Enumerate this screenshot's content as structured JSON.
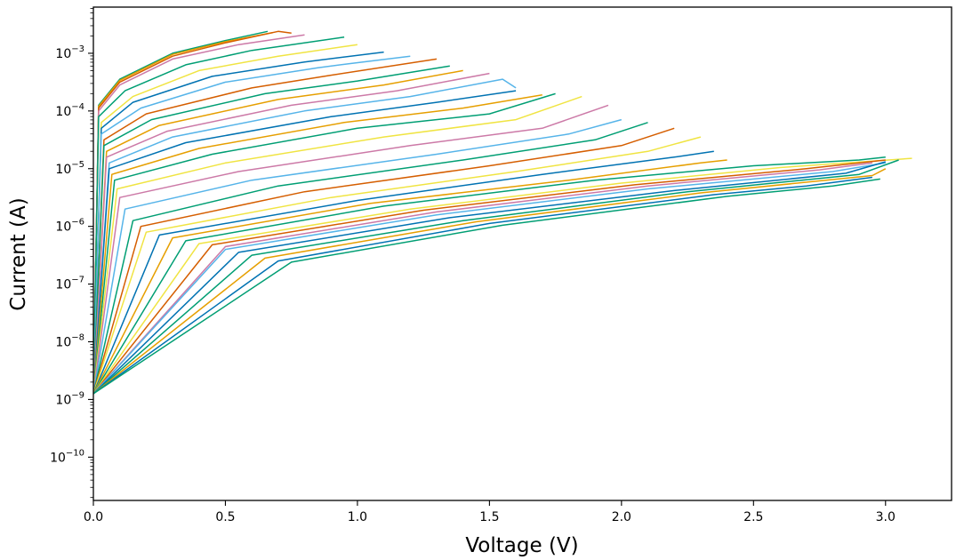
{
  "chart_data": {
    "type": "line",
    "xlabel": "Voltage (V)",
    "ylabel": "Current (A)",
    "xlim": [
      0.0,
      3.25
    ],
    "ylim_exp": [
      -10.75,
      -2.2
    ],
    "yscale": "log",
    "grid": false,
    "legend": "none",
    "x_ticks": [
      {
        "value": 0.0,
        "label": "0.0"
      },
      {
        "value": 0.5,
        "label": "0.5"
      },
      {
        "value": 1.0,
        "label": "1.0"
      },
      {
        "value": 1.5,
        "label": "1.5"
      },
      {
        "value": 2.0,
        "label": "2.0"
      },
      {
        "value": 2.5,
        "label": "2.5"
      },
      {
        "value": 3.0,
        "label": "3.0"
      }
    ],
    "y_ticks": [
      {
        "exp": -10,
        "base": "10",
        "sup": "−10"
      },
      {
        "exp": -9,
        "base": "10",
        "sup": "−9"
      },
      {
        "exp": -8,
        "base": "10",
        "sup": "−8"
      },
      {
        "exp": -7,
        "base": "10",
        "sup": "−7"
      },
      {
        "exp": -6,
        "base": "10",
        "sup": "−6"
      },
      {
        "exp": -5,
        "base": "10",
        "sup": "−5"
      },
      {
        "exp": -4,
        "base": "10",
        "sup": "−4"
      },
      {
        "exp": -3,
        "base": "10",
        "sup": "−3"
      }
    ],
    "series": [
      {
        "color": "#009E73",
        "points": [
          [
            0.0,
            -8.8
          ],
          [
            0.02,
            -3.9
          ],
          [
            0.1,
            -3.45
          ],
          [
            0.3,
            -3.0
          ],
          [
            0.5,
            -2.78
          ],
          [
            0.66,
            -2.62
          ]
        ]
      },
      {
        "color": "#E69F00",
        "points": [
          [
            0.0,
            -8.9
          ],
          [
            0.02,
            -3.92
          ],
          [
            0.1,
            -3.47
          ],
          [
            0.3,
            -3.02
          ],
          [
            0.5,
            -2.8
          ],
          [
            0.68,
            -2.64
          ]
        ]
      },
      {
        "color": "#D55E00",
        "points": [
          [
            0.0,
            -8.9
          ],
          [
            0.02,
            -3.95
          ],
          [
            0.1,
            -3.5
          ],
          [
            0.3,
            -3.05
          ],
          [
            0.5,
            -2.82
          ],
          [
            0.7,
            -2.62
          ],
          [
            0.75,
            -2.65
          ]
        ]
      },
      {
        "color": "#CC79A7",
        "points": [
          [
            0.0,
            -8.9
          ],
          [
            0.02,
            -4.0
          ],
          [
            0.1,
            -3.55
          ],
          [
            0.3,
            -3.1
          ],
          [
            0.55,
            -2.85
          ],
          [
            0.8,
            -2.68
          ]
        ]
      },
      {
        "color": "#009E73",
        "points": [
          [
            0.0,
            -8.9
          ],
          [
            0.02,
            -4.1
          ],
          [
            0.12,
            -3.65
          ],
          [
            0.35,
            -3.2
          ],
          [
            0.6,
            -2.95
          ],
          [
            0.95,
            -2.72
          ]
        ]
      },
      {
        "color": "#F0E442",
        "points": [
          [
            0.0,
            -8.9
          ],
          [
            0.03,
            -4.2
          ],
          [
            0.15,
            -3.75
          ],
          [
            0.4,
            -3.3
          ],
          [
            0.7,
            -3.05
          ],
          [
            1.0,
            -2.85
          ]
        ]
      },
      {
        "color": "#0072B2",
        "points": [
          [
            0.0,
            -8.9
          ],
          [
            0.03,
            -4.3
          ],
          [
            0.15,
            -3.85
          ],
          [
            0.45,
            -3.4
          ],
          [
            0.8,
            -3.15
          ],
          [
            1.1,
            -2.98
          ]
        ]
      },
      {
        "color": "#56B4E9",
        "points": [
          [
            0.0,
            -8.9
          ],
          [
            0.03,
            -4.4
          ],
          [
            0.18,
            -3.95
          ],
          [
            0.5,
            -3.5
          ],
          [
            0.85,
            -3.25
          ],
          [
            0.97,
            -3.18
          ],
          [
            1.2,
            -3.05
          ]
        ]
      },
      {
        "color": "#D55E00",
        "points": [
          [
            0.0,
            -8.9
          ],
          [
            0.04,
            -4.5
          ],
          [
            0.2,
            -4.05
          ],
          [
            0.6,
            -3.6
          ],
          [
            0.9,
            -3.38
          ],
          [
            1.3,
            -3.1
          ]
        ]
      },
      {
        "color": "#009E73",
        "points": [
          [
            0.0,
            -8.9
          ],
          [
            0.04,
            -4.6
          ],
          [
            0.22,
            -4.15
          ],
          [
            0.65,
            -3.7
          ],
          [
            1.0,
            -3.48
          ],
          [
            1.35,
            -3.22
          ]
        ]
      },
      {
        "color": "#E69F00",
        "points": [
          [
            0.0,
            -8.9
          ],
          [
            0.05,
            -4.7
          ],
          [
            0.25,
            -4.25
          ],
          [
            0.7,
            -3.8
          ],
          [
            1.1,
            -3.55
          ],
          [
            1.4,
            -3.3
          ]
        ]
      },
      {
        "color": "#CC79A7",
        "points": [
          [
            0.0,
            -8.9
          ],
          [
            0.05,
            -4.8
          ],
          [
            0.28,
            -4.35
          ],
          [
            0.75,
            -3.9
          ],
          [
            1.15,
            -3.65
          ],
          [
            1.5,
            -3.35
          ]
        ]
      },
      {
        "color": "#56B4E9",
        "points": [
          [
            0.0,
            -8.9
          ],
          [
            0.06,
            -4.9
          ],
          [
            0.3,
            -4.45
          ],
          [
            0.8,
            -4.0
          ],
          [
            1.2,
            -3.75
          ],
          [
            1.55,
            -3.45
          ],
          [
            1.6,
            -3.6
          ]
        ]
      },
      {
        "color": "#0072B2",
        "points": [
          [
            0.0,
            -8.9
          ],
          [
            0.06,
            -5.0
          ],
          [
            0.35,
            -4.55
          ],
          [
            0.9,
            -4.1
          ],
          [
            1.3,
            -3.85
          ],
          [
            1.6,
            -3.65
          ]
        ]
      },
      {
        "color": "#E69F00",
        "points": [
          [
            0.0,
            -8.9
          ],
          [
            0.07,
            -5.1
          ],
          [
            0.4,
            -4.65
          ],
          [
            0.95,
            -4.2
          ],
          [
            1.4,
            -3.95
          ],
          [
            1.7,
            -3.72
          ]
        ]
      },
      {
        "color": "#009E73",
        "points": [
          [
            0.0,
            -8.9
          ],
          [
            0.08,
            -5.2
          ],
          [
            0.45,
            -4.75
          ],
          [
            1.0,
            -4.3
          ],
          [
            1.5,
            -4.05
          ],
          [
            1.75,
            -3.7
          ]
        ]
      },
      {
        "color": "#F0E442",
        "points": [
          [
            0.0,
            -8.9
          ],
          [
            0.09,
            -5.35
          ],
          [
            0.5,
            -4.9
          ],
          [
            1.1,
            -4.45
          ],
          [
            1.6,
            -4.15
          ],
          [
            1.85,
            -3.75
          ]
        ]
      },
      {
        "color": "#CC79A7",
        "points": [
          [
            0.0,
            -8.9
          ],
          [
            0.1,
            -5.5
          ],
          [
            0.55,
            -5.05
          ],
          [
            1.2,
            -4.6
          ],
          [
            1.7,
            -4.3
          ],
          [
            1.95,
            -3.9
          ]
        ]
      },
      {
        "color": "#56B4E9",
        "points": [
          [
            0.0,
            -8.9
          ],
          [
            0.12,
            -5.7
          ],
          [
            0.6,
            -5.2
          ],
          [
            1.3,
            -4.75
          ],
          [
            1.8,
            -4.4
          ],
          [
            2.0,
            -4.15
          ]
        ]
      },
      {
        "color": "#009E73",
        "points": [
          [
            0.0,
            -8.9
          ],
          [
            0.15,
            -5.9
          ],
          [
            0.7,
            -5.3
          ],
          [
            1.4,
            -4.85
          ],
          [
            1.9,
            -4.5
          ],
          [
            2.1,
            -4.2
          ]
        ]
      },
      {
        "color": "#D55E00",
        "points": [
          [
            0.0,
            -8.9
          ],
          [
            0.18,
            -6.0
          ],
          [
            0.8,
            -5.4
          ],
          [
            1.5,
            -4.95
          ],
          [
            2.0,
            -4.6
          ],
          [
            2.2,
            -4.3
          ]
        ]
      },
      {
        "color": "#F0E442",
        "points": [
          [
            0.0,
            -8.9
          ],
          [
            0.2,
            -6.1
          ],
          [
            0.9,
            -5.5
          ],
          [
            1.6,
            -5.05
          ],
          [
            2.1,
            -4.7
          ],
          [
            2.3,
            -4.45
          ]
        ]
      },
      {
        "color": "#0072B2",
        "points": [
          [
            0.0,
            -8.9
          ],
          [
            0.25,
            -6.15
          ],
          [
            1.0,
            -5.55
          ],
          [
            1.7,
            -5.1
          ],
          [
            2.2,
            -4.8
          ],
          [
            2.35,
            -4.7
          ]
        ]
      },
      {
        "color": "#E69F00",
        "points": [
          [
            0.0,
            -8.9
          ],
          [
            0.3,
            -6.2
          ],
          [
            1.05,
            -5.6
          ],
          [
            1.8,
            -5.2
          ],
          [
            2.3,
            -4.9
          ],
          [
            2.4,
            -4.85
          ]
        ]
      },
      {
        "color": "#009E73",
        "points": [
          [
            0.0,
            -8.9
          ],
          [
            0.35,
            -6.25
          ],
          [
            1.1,
            -5.65
          ],
          [
            1.9,
            -5.2
          ],
          [
            2.5,
            -4.95
          ],
          [
            2.9,
            -4.85
          ],
          [
            3.0,
            -4.8
          ]
        ]
      },
      {
        "color": "#F0E442",
        "points": [
          [
            0.0,
            -8.9
          ],
          [
            0.4,
            -6.3
          ],
          [
            1.2,
            -5.7
          ],
          [
            2.0,
            -5.25
          ],
          [
            2.6,
            -4.98
          ],
          [
            3.1,
            -4.82
          ]
        ]
      },
      {
        "color": "#D55E00",
        "points": [
          [
            0.0,
            -8.9
          ],
          [
            0.45,
            -6.32
          ],
          [
            1.25,
            -5.72
          ],
          [
            2.05,
            -5.28
          ],
          [
            2.7,
            -5.0
          ],
          [
            3.0,
            -4.85
          ]
        ]
      },
      {
        "color": "#CC79A7",
        "points": [
          [
            0.0,
            -8.9
          ],
          [
            0.5,
            -6.35
          ],
          [
            1.3,
            -5.75
          ],
          [
            2.1,
            -5.3
          ],
          [
            2.75,
            -5.02
          ],
          [
            2.95,
            -4.9
          ]
        ]
      },
      {
        "color": "#56B4E9",
        "points": [
          [
            0.0,
            -8.9
          ],
          [
            0.5,
            -6.4
          ],
          [
            1.3,
            -5.8
          ],
          [
            2.1,
            -5.35
          ],
          [
            2.8,
            -5.05
          ],
          [
            3.0,
            -4.9
          ]
        ]
      },
      {
        "color": "#0072B2",
        "points": [
          [
            0.0,
            -8.9
          ],
          [
            0.55,
            -6.45
          ],
          [
            1.35,
            -5.85
          ],
          [
            2.2,
            -5.38
          ],
          [
            2.85,
            -5.08
          ],
          [
            3.0,
            -4.88
          ]
        ]
      },
      {
        "color": "#009E73",
        "points": [
          [
            0.0,
            -8.9
          ],
          [
            0.6,
            -6.5
          ],
          [
            1.4,
            -5.9
          ],
          [
            2.25,
            -5.4
          ],
          [
            2.9,
            -5.1
          ],
          [
            3.05,
            -4.85
          ]
        ]
      },
      {
        "color": "#E69F00",
        "points": [
          [
            0.0,
            -8.9
          ],
          [
            0.65,
            -6.55
          ],
          [
            1.45,
            -5.92
          ],
          [
            2.3,
            -5.42
          ],
          [
            2.95,
            -5.12
          ],
          [
            3.0,
            -5.0
          ]
        ]
      },
      {
        "color": "#0072B2",
        "points": [
          [
            0.0,
            -8.9
          ],
          [
            0.7,
            -6.6
          ],
          [
            1.5,
            -5.95
          ],
          [
            2.35,
            -5.45
          ],
          [
            2.7,
            -5.3
          ],
          [
            2.95,
            -5.15
          ]
        ]
      },
      {
        "color": "#009E73",
        "points": [
          [
            0.0,
            -8.9
          ],
          [
            0.75,
            -6.62
          ],
          [
            1.55,
            -5.98
          ],
          [
            2.4,
            -5.48
          ],
          [
            2.8,
            -5.3
          ],
          [
            2.98,
            -5.18
          ]
        ]
      }
    ]
  }
}
